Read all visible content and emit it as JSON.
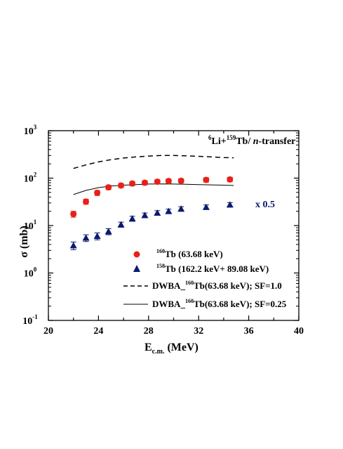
{
  "chart_data": {
    "type": "scatter",
    "annotation": "⁶Li+¹⁵⁹Tb/ n-transfer",
    "annotation_parts": {
      "sup1": "6",
      "t1": "Li+",
      "sup2": "159",
      "t2": "Tb/ ",
      "t3": "n",
      "t4": "-transfer"
    },
    "scale_note": "x 0.5",
    "xlabel": {
      "main": "E",
      "sub": "c.m.",
      "rest": " (MeV)"
    },
    "ylabel": "σ (mb)",
    "xlim": [
      20,
      40
    ],
    "ylim": [
      0.1,
      1000
    ],
    "yscale": "log",
    "x_ticks": [
      "20",
      "24",
      "28",
      "32",
      "36",
      "40"
    ],
    "y_ticks": [
      {
        "base": "10",
        "exp": "-1"
      },
      {
        "base": "10",
        "exp": "0"
      },
      {
        "base": "10",
        "exp": "1"
      },
      {
        "base": "10",
        "exp": "2"
      },
      {
        "base": "10",
        "exp": "3"
      }
    ],
    "legend_position": "bottom-right",
    "colors": {
      "red": "#e8201a",
      "navy": "#0a1a6e"
    },
    "series": [
      {
        "kind": "points",
        "marker": "circle",
        "color": "#e8201a",
        "legend": {
          "sup": "160",
          "text": "Tb (63.68 keV)"
        },
        "points": [
          {
            "x": 22.0,
            "y": 17.5,
            "err": 2.5
          },
          {
            "x": 23.0,
            "y": 32,
            "err": 4
          },
          {
            "x": 23.9,
            "y": 49,
            "err": 6
          },
          {
            "x": 24.8,
            "y": 64,
            "err": 7
          },
          {
            "x": 25.8,
            "y": 70,
            "err": 7
          },
          {
            "x": 26.7,
            "y": 77,
            "err": 8
          },
          {
            "x": 27.7,
            "y": 80,
            "err": 8
          },
          {
            "x": 28.7,
            "y": 84,
            "err": 9
          },
          {
            "x": 29.6,
            "y": 87,
            "err": 9
          },
          {
            "x": 30.6,
            "y": 88,
            "err": 9
          },
          {
            "x": 32.6,
            "y": 92,
            "err": 10
          },
          {
            "x": 34.5,
            "y": 94,
            "err": 10
          }
        ]
      },
      {
        "kind": "points",
        "marker": "triangle",
        "color": "#0a1a6e",
        "legend": {
          "sup": "158",
          "text": "Tb (162.2 keV+ 89.08 keV)"
        },
        "points": [
          {
            "x": 22.0,
            "y": 3.8,
            "err": 0.7
          },
          {
            "x": 23.0,
            "y": 5.5,
            "err": 0.9
          },
          {
            "x": 23.9,
            "y": 6.0,
            "err": 1.0
          },
          {
            "x": 24.8,
            "y": 7.5,
            "err": 1.1
          },
          {
            "x": 25.8,
            "y": 10.5,
            "err": 1.3
          },
          {
            "x": 26.7,
            "y": 14,
            "err": 1.7
          },
          {
            "x": 27.7,
            "y": 16.5,
            "err": 1.9
          },
          {
            "x": 28.7,
            "y": 18.5,
            "err": 2.1
          },
          {
            "x": 29.6,
            "y": 20,
            "err": 2.2
          },
          {
            "x": 30.6,
            "y": 22.5,
            "err": 2.5
          },
          {
            "x": 32.6,
            "y": 24.5,
            "err": 2.7
          },
          {
            "x": 34.5,
            "y": 27.5,
            "err": 3.0
          }
        ]
      },
      {
        "kind": "line",
        "style": "dashed",
        "legend": {
          "pre": "DWBA_",
          "sup": "160",
          "text": "Tb(63.68 keV); SF=1.0"
        },
        "points": [
          {
            "x": 22,
            "y": 160
          },
          {
            "x": 23,
            "y": 190
          },
          {
            "x": 24,
            "y": 220
          },
          {
            "x": 25,
            "y": 245
          },
          {
            "x": 26,
            "y": 265
          },
          {
            "x": 27,
            "y": 280
          },
          {
            "x": 28,
            "y": 292
          },
          {
            "x": 29,
            "y": 300
          },
          {
            "x": 30,
            "y": 300
          },
          {
            "x": 31,
            "y": 295
          },
          {
            "x": 32,
            "y": 288
          },
          {
            "x": 33,
            "y": 280
          },
          {
            "x": 34,
            "y": 272
          },
          {
            "x": 34.8,
            "y": 268
          }
        ]
      },
      {
        "kind": "line",
        "style": "solid",
        "legend": {
          "pre": "DWBA_",
          "sup": "160",
          "text": "Tb(63.68 keV); SF=0.25"
        },
        "points": [
          {
            "x": 22,
            "y": 45
          },
          {
            "x": 23,
            "y": 55
          },
          {
            "x": 24,
            "y": 63
          },
          {
            "x": 25,
            "y": 68
          },
          {
            "x": 26,
            "y": 71
          },
          {
            "x": 27,
            "y": 73
          },
          {
            "x": 28,
            "y": 75
          },
          {
            "x": 29,
            "y": 75.5
          },
          {
            "x": 30,
            "y": 75
          },
          {
            "x": 31,
            "y": 74
          },
          {
            "x": 32,
            "y": 73
          },
          {
            "x": 33,
            "y": 72
          },
          {
            "x": 34,
            "y": 71
          },
          {
            "x": 34.8,
            "y": 70
          }
        ]
      }
    ]
  }
}
